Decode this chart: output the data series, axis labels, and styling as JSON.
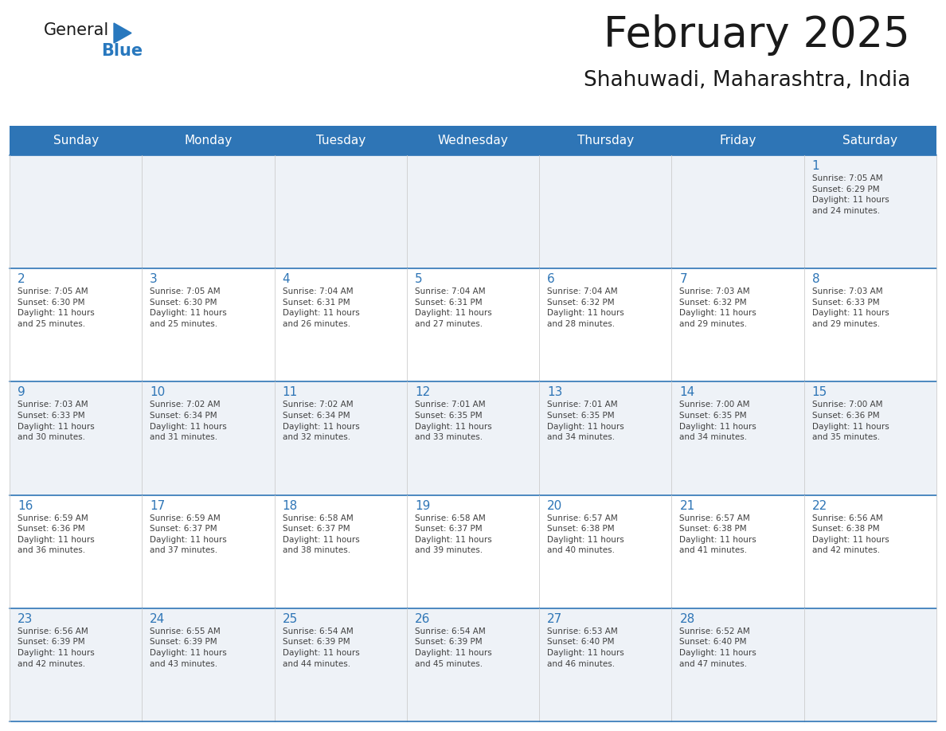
{
  "title": "February 2025",
  "subtitle": "Shahuwadi, Maharashtra, India",
  "header_bg_color": "#2E75B6",
  "header_text_color": "#FFFFFF",
  "even_row_bg": "#EEF2F7",
  "odd_row_bg": "#FFFFFF",
  "border_color": "#2E75B6",
  "row_line_color": "#2E75B6",
  "col_line_color": "#cccccc",
  "title_color": "#1a1a1a",
  "subtitle_color": "#1a1a1a",
  "day_number_color": "#2E75B6",
  "cell_text_color": "#404040",
  "logo_general_color": "#1a1a1a",
  "logo_blue_color": "#2878BE",
  "logo_triangle_color": "#2878BE",
  "days_of_week": [
    "Sunday",
    "Monday",
    "Tuesday",
    "Wednesday",
    "Thursday",
    "Friday",
    "Saturday"
  ],
  "calendar_data": [
    [
      {
        "day": null,
        "info": null
      },
      {
        "day": null,
        "info": null
      },
      {
        "day": null,
        "info": null
      },
      {
        "day": null,
        "info": null
      },
      {
        "day": null,
        "info": null
      },
      {
        "day": null,
        "info": null
      },
      {
        "day": 1,
        "info": "Sunrise: 7:05 AM\nSunset: 6:29 PM\nDaylight: 11 hours\nand 24 minutes."
      }
    ],
    [
      {
        "day": 2,
        "info": "Sunrise: 7:05 AM\nSunset: 6:30 PM\nDaylight: 11 hours\nand 25 minutes."
      },
      {
        "day": 3,
        "info": "Sunrise: 7:05 AM\nSunset: 6:30 PM\nDaylight: 11 hours\nand 25 minutes."
      },
      {
        "day": 4,
        "info": "Sunrise: 7:04 AM\nSunset: 6:31 PM\nDaylight: 11 hours\nand 26 minutes."
      },
      {
        "day": 5,
        "info": "Sunrise: 7:04 AM\nSunset: 6:31 PM\nDaylight: 11 hours\nand 27 minutes."
      },
      {
        "day": 6,
        "info": "Sunrise: 7:04 AM\nSunset: 6:32 PM\nDaylight: 11 hours\nand 28 minutes."
      },
      {
        "day": 7,
        "info": "Sunrise: 7:03 AM\nSunset: 6:32 PM\nDaylight: 11 hours\nand 29 minutes."
      },
      {
        "day": 8,
        "info": "Sunrise: 7:03 AM\nSunset: 6:33 PM\nDaylight: 11 hours\nand 29 minutes."
      }
    ],
    [
      {
        "day": 9,
        "info": "Sunrise: 7:03 AM\nSunset: 6:33 PM\nDaylight: 11 hours\nand 30 minutes."
      },
      {
        "day": 10,
        "info": "Sunrise: 7:02 AM\nSunset: 6:34 PM\nDaylight: 11 hours\nand 31 minutes."
      },
      {
        "day": 11,
        "info": "Sunrise: 7:02 AM\nSunset: 6:34 PM\nDaylight: 11 hours\nand 32 minutes."
      },
      {
        "day": 12,
        "info": "Sunrise: 7:01 AM\nSunset: 6:35 PM\nDaylight: 11 hours\nand 33 minutes."
      },
      {
        "day": 13,
        "info": "Sunrise: 7:01 AM\nSunset: 6:35 PM\nDaylight: 11 hours\nand 34 minutes."
      },
      {
        "day": 14,
        "info": "Sunrise: 7:00 AM\nSunset: 6:35 PM\nDaylight: 11 hours\nand 34 minutes."
      },
      {
        "day": 15,
        "info": "Sunrise: 7:00 AM\nSunset: 6:36 PM\nDaylight: 11 hours\nand 35 minutes."
      }
    ],
    [
      {
        "day": 16,
        "info": "Sunrise: 6:59 AM\nSunset: 6:36 PM\nDaylight: 11 hours\nand 36 minutes."
      },
      {
        "day": 17,
        "info": "Sunrise: 6:59 AM\nSunset: 6:37 PM\nDaylight: 11 hours\nand 37 minutes."
      },
      {
        "day": 18,
        "info": "Sunrise: 6:58 AM\nSunset: 6:37 PM\nDaylight: 11 hours\nand 38 minutes."
      },
      {
        "day": 19,
        "info": "Sunrise: 6:58 AM\nSunset: 6:37 PM\nDaylight: 11 hours\nand 39 minutes."
      },
      {
        "day": 20,
        "info": "Sunrise: 6:57 AM\nSunset: 6:38 PM\nDaylight: 11 hours\nand 40 minutes."
      },
      {
        "day": 21,
        "info": "Sunrise: 6:57 AM\nSunset: 6:38 PM\nDaylight: 11 hours\nand 41 minutes."
      },
      {
        "day": 22,
        "info": "Sunrise: 6:56 AM\nSunset: 6:38 PM\nDaylight: 11 hours\nand 42 minutes."
      }
    ],
    [
      {
        "day": 23,
        "info": "Sunrise: 6:56 AM\nSunset: 6:39 PM\nDaylight: 11 hours\nand 42 minutes."
      },
      {
        "day": 24,
        "info": "Sunrise: 6:55 AM\nSunset: 6:39 PM\nDaylight: 11 hours\nand 43 minutes."
      },
      {
        "day": 25,
        "info": "Sunrise: 6:54 AM\nSunset: 6:39 PM\nDaylight: 11 hours\nand 44 minutes."
      },
      {
        "day": 26,
        "info": "Sunrise: 6:54 AM\nSunset: 6:39 PM\nDaylight: 11 hours\nand 45 minutes."
      },
      {
        "day": 27,
        "info": "Sunrise: 6:53 AM\nSunset: 6:40 PM\nDaylight: 11 hours\nand 46 minutes."
      },
      {
        "day": 28,
        "info": "Sunrise: 6:52 AM\nSunset: 6:40 PM\nDaylight: 11 hours\nand 47 minutes."
      },
      {
        "day": null,
        "info": null
      }
    ]
  ]
}
